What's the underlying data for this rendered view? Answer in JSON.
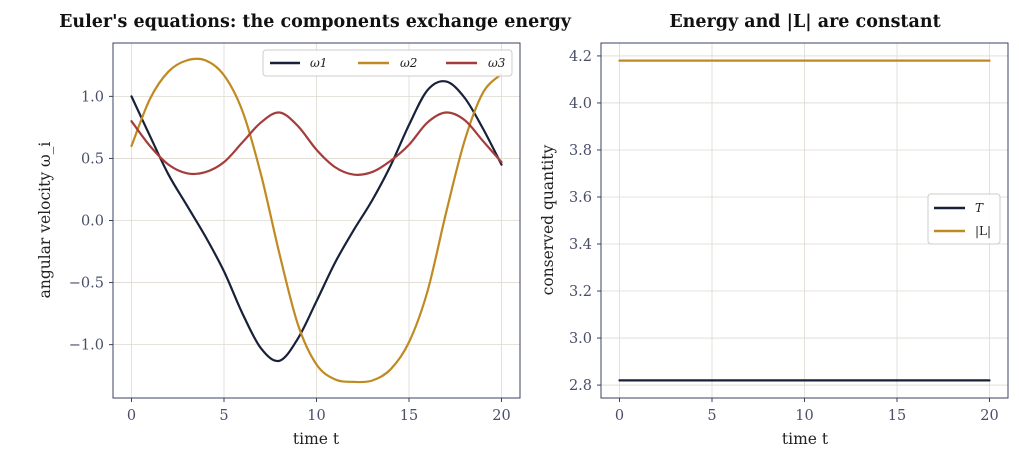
{
  "colors": {
    "omega1": "#18213a",
    "omega2": "#c08a22",
    "omega3": "#a53c3c"
  },
  "chart_data": [
    {
      "type": "line",
      "title": "Euler's equations: the components exchange energy",
      "xlabel": "time  t",
      "ylabel": "angular velocity  ω_i",
      "xlim": [
        -1,
        21
      ],
      "ylim": [
        -1.43,
        1.43
      ],
      "x_ticks": [
        0,
        5,
        10,
        15,
        20
      ],
      "y_ticks": [
        -1.0,
        -0.5,
        0.0,
        0.5,
        1.0
      ],
      "x_tick_labels": [
        "0",
        "5",
        "10",
        "15",
        "20"
      ],
      "y_tick_labels": [
        "−1.0",
        "−0.5",
        "0.0",
        "0.5",
        "1.0"
      ],
      "grid": true,
      "legend_position": "top-right",
      "series": [
        {
          "name": "ω1",
          "color": "#18213a",
          "x": [
            0,
            1,
            2,
            3,
            4,
            5,
            6,
            7,
            8,
            9,
            10,
            11,
            12,
            13,
            14,
            15,
            16,
            17,
            18,
            19,
            20
          ],
          "y": [
            1.0,
            0.68,
            0.37,
            0.12,
            -0.13,
            -0.41,
            -0.75,
            -1.03,
            -1.13,
            -0.95,
            -0.65,
            -0.34,
            -0.08,
            0.16,
            0.44,
            0.77,
            1.05,
            1.12,
            0.99,
            0.74,
            0.45
          ]
        },
        {
          "name": "ω2",
          "color": "#c08a22",
          "x": [
            0,
            1,
            2,
            3,
            4,
            5,
            6,
            7,
            8,
            9,
            10,
            11,
            12,
            13,
            14,
            15,
            16,
            17,
            18,
            19,
            20
          ],
          "y": [
            0.6,
            0.98,
            1.2,
            1.29,
            1.29,
            1.17,
            0.88,
            0.37,
            -0.27,
            -0.84,
            -1.16,
            -1.28,
            -1.3,
            -1.29,
            -1.2,
            -0.98,
            -0.57,
            0.06,
            0.64,
            1.03,
            1.18
          ]
        },
        {
          "name": "ω3",
          "color": "#a53c3c",
          "x": [
            0,
            1,
            2,
            3,
            4,
            5,
            6,
            7,
            8,
            9,
            10,
            11,
            12,
            13,
            14,
            15,
            16,
            17,
            18,
            19,
            20
          ],
          "y": [
            0.8,
            0.6,
            0.45,
            0.38,
            0.39,
            0.47,
            0.63,
            0.79,
            0.87,
            0.76,
            0.57,
            0.43,
            0.37,
            0.39,
            0.48,
            0.61,
            0.79,
            0.87,
            0.81,
            0.64,
            0.47
          ]
        }
      ]
    },
    {
      "type": "line",
      "title": "Energy and |L| are constant",
      "xlabel": "time  t",
      "ylabel": "conserved quantity",
      "xlim": [
        -1,
        21
      ],
      "ylim": [
        2.745,
        4.255
      ],
      "x_ticks": [
        0,
        5,
        10,
        15,
        20
      ],
      "y_ticks": [
        2.8,
        3.0,
        3.2,
        3.4,
        3.6,
        3.8,
        4.0,
        4.2
      ],
      "x_tick_labels": [
        "0",
        "5",
        "10",
        "15",
        "20"
      ],
      "y_tick_labels": [
        "2.8",
        "3.0",
        "3.2",
        "3.4",
        "3.6",
        "3.8",
        "4.0",
        "4.2"
      ],
      "grid": true,
      "legend_position": "center-right",
      "series": [
        {
          "name": "T",
          "color": "#18213a",
          "x": [
            0,
            20
          ],
          "y": [
            2.82,
            2.82
          ]
        },
        {
          "name": "|L|",
          "color": "#c08a22",
          "x": [
            0,
            20
          ],
          "y": [
            4.18,
            4.18
          ]
        }
      ]
    }
  ]
}
